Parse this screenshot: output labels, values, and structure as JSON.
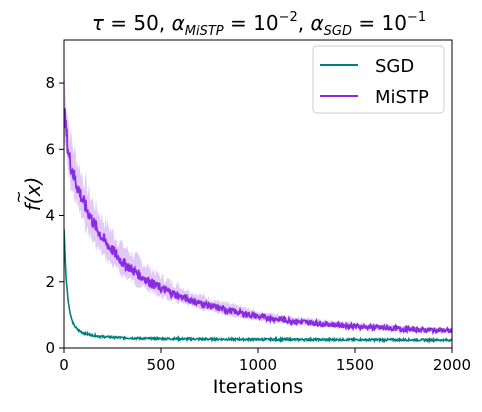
{
  "chart_data": {
    "type": "line",
    "title": "τ = 50, α_MiSTP = 10^−2, α_SGD = 10^−1",
    "title_parts": {
      "tau": "τ",
      "tau_eq": " = 50, ",
      "alpha1": "α",
      "alpha1_sub": "MiSTP",
      "alpha1_eq": " = 10",
      "alpha1_exp": "−2",
      "comma": ", ",
      "alpha2": "α",
      "alpha2_sub": "SGD",
      "alpha2_eq": " = 10",
      "alpha2_exp": "−1"
    },
    "xlabel": "Iterations",
    "ylabel": "f(x)",
    "ylabel_accent": "~",
    "xlim": [
      0,
      2000
    ],
    "ylim": [
      0,
      9.3
    ],
    "xticks": [
      0,
      500,
      1000,
      1500,
      2000
    ],
    "yticks": [
      0,
      2,
      4,
      6,
      8
    ],
    "grid": false,
    "legend_position": "top-right",
    "colors": {
      "SGD": "#008080",
      "MiSTP": "#8a2be2",
      "MiSTP_band": "#d8b8f5"
    },
    "series": [
      {
        "name": "SGD",
        "x": [
          0,
          5,
          10,
          20,
          30,
          40,
          50,
          70,
          100,
          150,
          200,
          300,
          400,
          500,
          700,
          1000,
          1500,
          2000
        ],
        "values": [
          3.6,
          2.9,
          2.2,
          1.5,
          1.1,
          0.85,
          0.7,
          0.55,
          0.45,
          0.38,
          0.34,
          0.31,
          0.29,
          0.28,
          0.27,
          0.26,
          0.25,
          0.24
        ]
      },
      {
        "name": "MiSTP",
        "x": [
          0,
          10,
          25,
          50,
          100,
          150,
          200,
          300,
          400,
          500,
          600,
          700,
          800,
          1000,
          1200,
          1400,
          1600,
          1800,
          2000
        ],
        "values": [
          7.2,
          6.6,
          5.8,
          5.2,
          4.4,
          3.8,
          3.3,
          2.6,
          2.15,
          1.8,
          1.55,
          1.35,
          1.2,
          0.95,
          0.8,
          0.7,
          0.62,
          0.56,
          0.52
        ],
        "band_low": [
          6.4,
          5.9,
          5.1,
          4.6,
          3.8,
          3.2,
          2.8,
          2.2,
          1.85,
          1.55,
          1.35,
          1.18,
          1.05,
          0.83,
          0.7,
          0.62,
          0.55,
          0.5,
          0.47
        ],
        "band_high": [
          8.4,
          7.6,
          6.7,
          6.0,
          5.1,
          4.4,
          3.9,
          3.1,
          2.6,
          2.15,
          1.85,
          1.6,
          1.4,
          1.1,
          0.92,
          0.8,
          0.71,
          0.64,
          0.58
        ]
      }
    ]
  }
}
